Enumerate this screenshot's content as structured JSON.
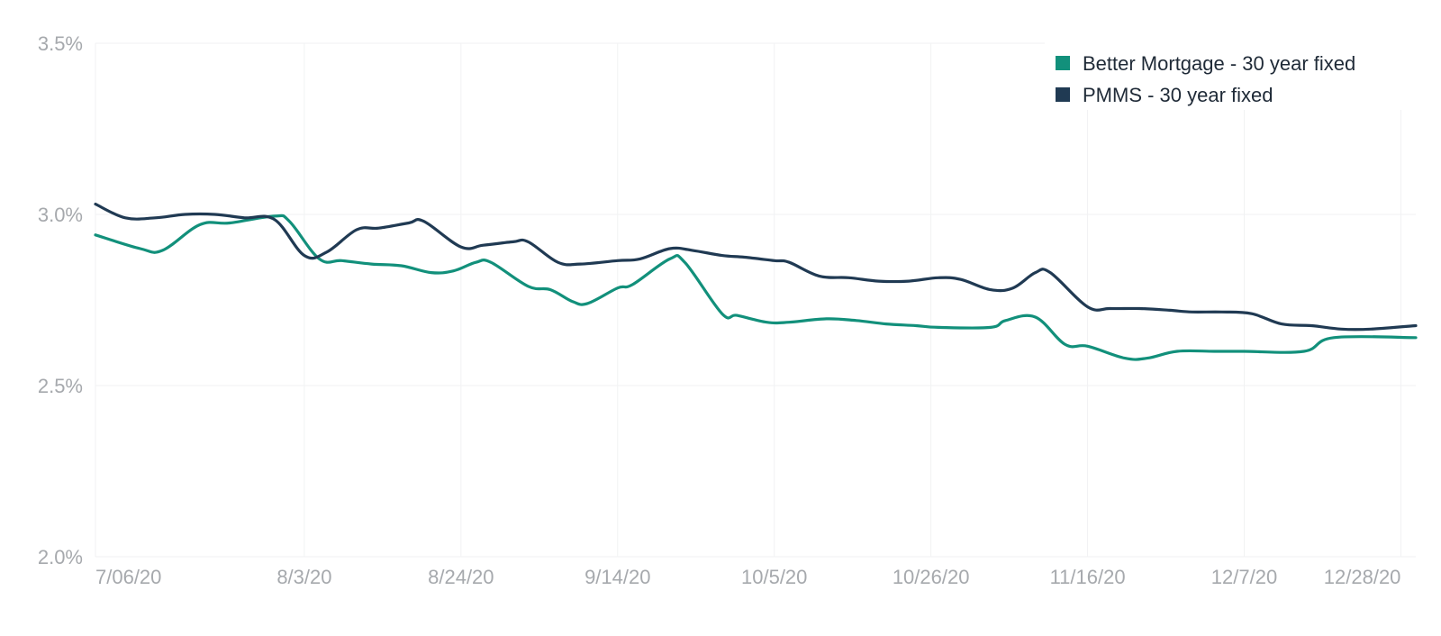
{
  "chart_data": {
    "type": "line",
    "title": "",
    "xlabel": "",
    "ylabel": "",
    "x_ticks": [
      "7/06/20",
      "8/3/20",
      "8/24/20",
      "9/14/20",
      "10/5/20",
      "10/26/20",
      "11/16/20",
      "12/7/20",
      "12/28/20"
    ],
    "y_ticks": [
      "2.0%",
      "2.5%",
      "3.0%",
      "3.5%"
    ],
    "ylim": [
      2.0,
      3.5
    ],
    "xlim": [
      "2020-07-06",
      "2020-12-30"
    ],
    "grid": true,
    "legend_position": "top-right",
    "series": [
      {
        "name": "Better Mortgage - 30 year fixed",
        "color": "#12907b",
        "points": [
          [
            "2020-07-06",
            2.94
          ],
          [
            "2020-07-12",
            2.9
          ],
          [
            "2020-07-15",
            2.895
          ],
          [
            "2020-07-20",
            2.97
          ],
          [
            "2020-07-24",
            2.975
          ],
          [
            "2020-07-30",
            2.995
          ],
          [
            "2020-08-01",
            2.98
          ],
          [
            "2020-08-05",
            2.87
          ],
          [
            "2020-08-08",
            2.865
          ],
          [
            "2020-08-12",
            2.855
          ],
          [
            "2020-08-16",
            2.85
          ],
          [
            "2020-08-20",
            2.83
          ],
          [
            "2020-08-23",
            2.835
          ],
          [
            "2020-08-26",
            2.86
          ],
          [
            "2020-08-28",
            2.86
          ],
          [
            "2020-09-02",
            2.79
          ],
          [
            "2020-09-05",
            2.78
          ],
          [
            "2020-09-08",
            2.745
          ],
          [
            "2020-09-10",
            2.74
          ],
          [
            "2020-09-14",
            2.785
          ],
          [
            "2020-09-16",
            2.795
          ],
          [
            "2020-09-21",
            2.87
          ],
          [
            "2020-09-23",
            2.86
          ],
          [
            "2020-09-28",
            2.71
          ],
          [
            "2020-09-30",
            2.705
          ],
          [
            "2020-10-04",
            2.685
          ],
          [
            "2020-10-07",
            2.685
          ],
          [
            "2020-10-12",
            2.695
          ],
          [
            "2020-10-16",
            2.69
          ],
          [
            "2020-10-20",
            2.68
          ],
          [
            "2020-10-24",
            2.675
          ],
          [
            "2020-10-27",
            2.67
          ],
          [
            "2020-11-03",
            2.67
          ],
          [
            "2020-11-05",
            2.69
          ],
          [
            "2020-11-09",
            2.7
          ],
          [
            "2020-11-13",
            2.62
          ],
          [
            "2020-11-16",
            2.615
          ],
          [
            "2020-11-21",
            2.58
          ],
          [
            "2020-11-24",
            2.58
          ],
          [
            "2020-11-28",
            2.6
          ],
          [
            "2020-12-03",
            2.6
          ],
          [
            "2020-12-07",
            2.6
          ],
          [
            "2020-12-15",
            2.6
          ],
          [
            "2020-12-19",
            2.64
          ],
          [
            "2020-12-30",
            2.64
          ]
        ]
      },
      {
        "name": "PMMS - 30 year fixed",
        "color": "#203a53",
        "points": [
          [
            "2020-07-06",
            3.03
          ],
          [
            "2020-07-10",
            2.99
          ],
          [
            "2020-07-14",
            2.99
          ],
          [
            "2020-07-18",
            3.0
          ],
          [
            "2020-07-22",
            3.0
          ],
          [
            "2020-07-26",
            2.99
          ],
          [
            "2020-07-30",
            2.985
          ],
          [
            "2020-08-03",
            2.88
          ],
          [
            "2020-08-06",
            2.89
          ],
          [
            "2020-08-10",
            2.955
          ],
          [
            "2020-08-13",
            2.96
          ],
          [
            "2020-08-17",
            2.975
          ],
          [
            "2020-08-19",
            2.98
          ],
          [
            "2020-08-24",
            2.905
          ],
          [
            "2020-08-27",
            2.91
          ],
          [
            "2020-08-31",
            2.92
          ],
          [
            "2020-09-02",
            2.92
          ],
          [
            "2020-09-06",
            2.86
          ],
          [
            "2020-09-09",
            2.855
          ],
          [
            "2020-09-14",
            2.865
          ],
          [
            "2020-09-17",
            2.87
          ],
          [
            "2020-09-21",
            2.9
          ],
          [
            "2020-09-24",
            2.895
          ],
          [
            "2020-09-28",
            2.88
          ],
          [
            "2020-10-01",
            2.875
          ],
          [
            "2020-10-05",
            2.865
          ],
          [
            "2020-10-07",
            2.86
          ],
          [
            "2020-10-11",
            2.82
          ],
          [
            "2020-10-15",
            2.815
          ],
          [
            "2020-10-19",
            2.805
          ],
          [
            "2020-10-23",
            2.805
          ],
          [
            "2020-10-27",
            2.815
          ],
          [
            "2020-10-30",
            2.81
          ],
          [
            "2020-11-03",
            2.78
          ],
          [
            "2020-11-06",
            2.785
          ],
          [
            "2020-11-09",
            2.83
          ],
          [
            "2020-11-11",
            2.83
          ],
          [
            "2020-11-16",
            2.73
          ],
          [
            "2020-11-19",
            2.725
          ],
          [
            "2020-11-23",
            2.725
          ],
          [
            "2020-11-27",
            2.72
          ],
          [
            "2020-11-30",
            2.715
          ],
          [
            "2020-12-04",
            2.715
          ],
          [
            "2020-12-08",
            2.71
          ],
          [
            "2020-12-12",
            2.68
          ],
          [
            "2020-12-16",
            2.675
          ],
          [
            "2020-12-20",
            2.665
          ],
          [
            "2020-12-24",
            2.665
          ],
          [
            "2020-12-30",
            2.675
          ]
        ]
      }
    ]
  }
}
